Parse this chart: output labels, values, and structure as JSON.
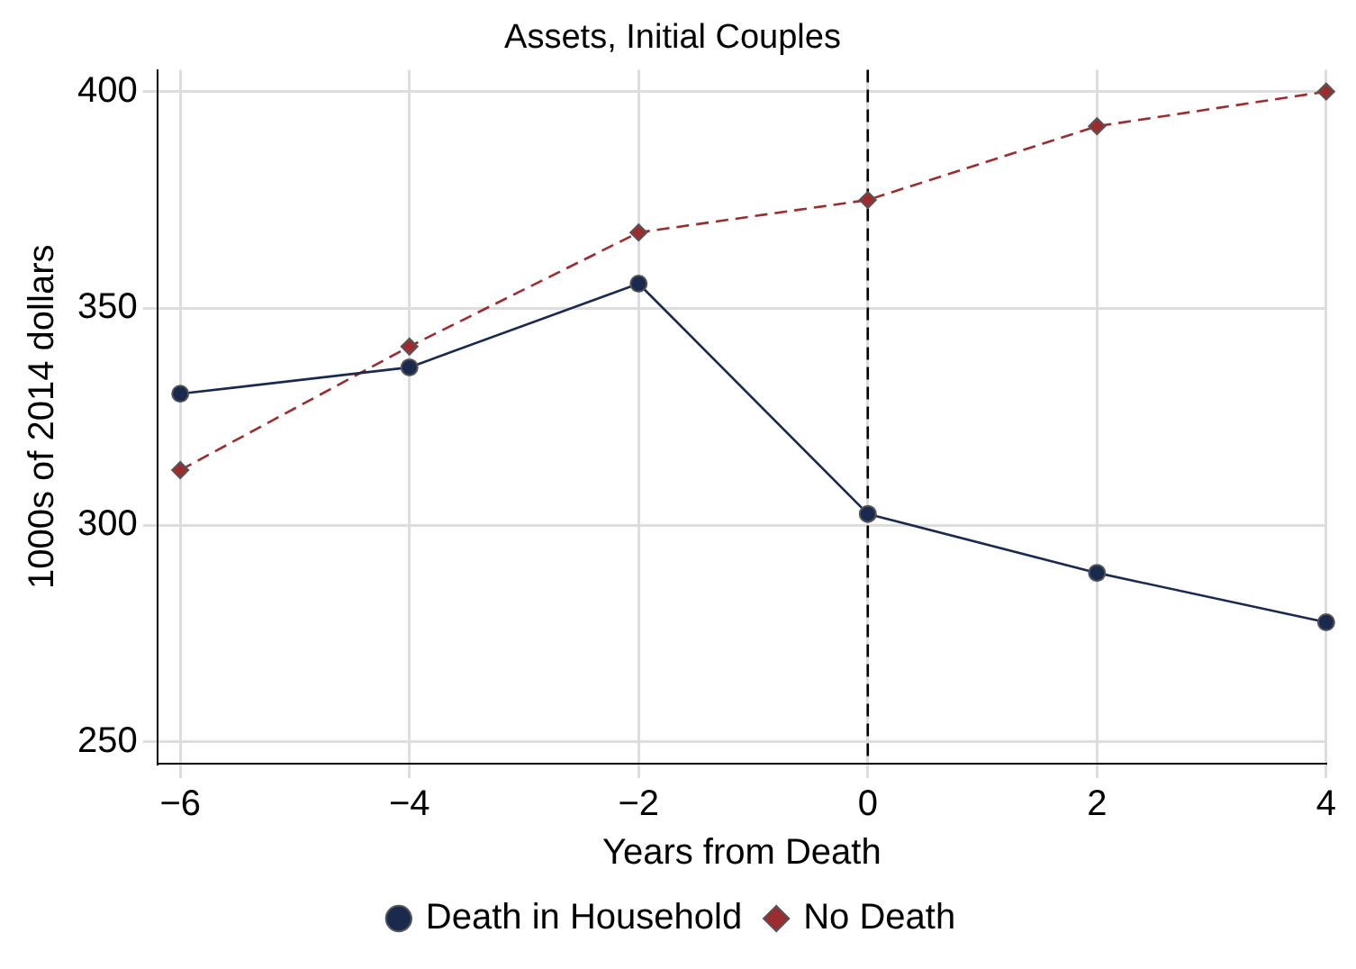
{
  "chart_data": {
    "type": "line",
    "title": "Assets, Initial Couples",
    "xlabel": "Years from Death",
    "ylabel": "1000s of 2014 dollars",
    "x": [
      -6,
      -4,
      -2,
      0,
      2,
      4
    ],
    "series": [
      {
        "name": "Death in Household",
        "color": "#1a2a4f",
        "values": [
          330.3,
          336.4,
          355.7,
          302.6,
          289,
          277.6
        ],
        "marker": "circle",
        "line_style": "solid"
      },
      {
        "name": "No Death",
        "color": "#9b2d30",
        "values": [
          312.7,
          341.2,
          367.5,
          375,
          392,
          400
        ],
        "marker": "diamond",
        "line_style": "dashed"
      }
    ],
    "xlim": [
      -6.2,
      4
    ],
    "xticks": [
      -6,
      -4,
      -2,
      0,
      2,
      4
    ],
    "ylim": [
      245,
      405
    ],
    "yticks": [
      250,
      300,
      350,
      400
    ],
    "grid": true,
    "legend": "bottom",
    "ref_lines": [
      {
        "axis": "x",
        "value": 0,
        "color": "#000000",
        "line_style": "dashed"
      }
    ]
  }
}
